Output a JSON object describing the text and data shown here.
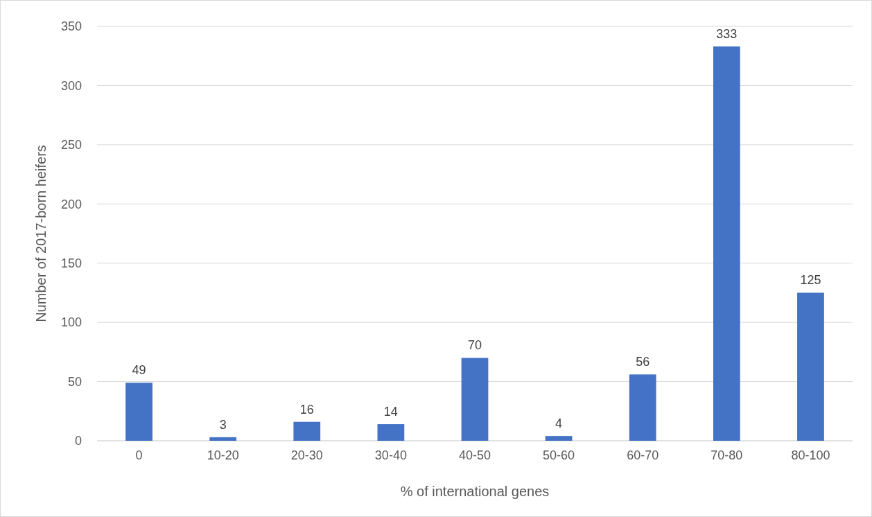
{
  "chart_data": {
    "type": "bar",
    "xlabel": "% of international genes",
    "ylabel": "Number of 2017-born heifers",
    "categories": [
      "0",
      "10-20",
      "20-30",
      "30-40",
      "40-50",
      "50-60",
      "60-70",
      "70-80",
      "80-100"
    ],
    "values": [
      49,
      3,
      16,
      14,
      70,
      4,
      56,
      333,
      125
    ],
    "color": "#4472c4",
    "ylim": [
      0,
      350
    ],
    "yticks": [
      0,
      50,
      100,
      150,
      200,
      250,
      300,
      350
    ],
    "grid": "y",
    "data_labels": true
  }
}
